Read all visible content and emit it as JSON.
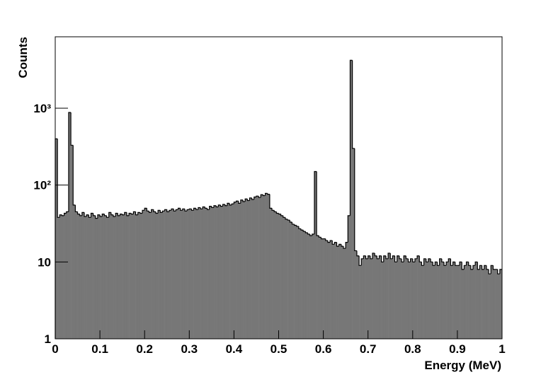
{
  "chart_data": {
    "type": "histogram",
    "xlabel": "Energy (MeV)",
    "ylabel": "Counts",
    "log_y": true,
    "color": "#777777",
    "edge_color": "#000000",
    "xlim": [
      0,
      1
    ],
    "ylim": [
      1,
      8500
    ],
    "xticks": [
      0,
      0.1,
      0.2,
      0.3,
      0.4,
      0.5,
      0.6,
      0.7,
      0.8,
      0.9,
      1
    ],
    "yticks": [
      1,
      10,
      {
        "value": 100,
        "label": "10²"
      },
      {
        "value": 1000,
        "label": "10³"
      }
    ],
    "bins": [
      0,
      0.005,
      0.01,
      0.015,
      0.02,
      0.025,
      0.03,
      0.035,
      0.04,
      0.045,
      0.05,
      0.055,
      0.06,
      0.065,
      0.07,
      0.075,
      0.08,
      0.085,
      0.09,
      0.095,
      0.1,
      0.105,
      0.11,
      0.115,
      0.12,
      0.125,
      0.13,
      0.135,
      0.14,
      0.145,
      0.15,
      0.155,
      0.16,
      0.165,
      0.17,
      0.175,
      0.18,
      0.185,
      0.19,
      0.195,
      0.2,
      0.205,
      0.21,
      0.215,
      0.22,
      0.225,
      0.23,
      0.235,
      0.24,
      0.245,
      0.25,
      0.255,
      0.26,
      0.265,
      0.27,
      0.275,
      0.28,
      0.285,
      0.29,
      0.295,
      0.3,
      0.305,
      0.31,
      0.315,
      0.32,
      0.325,
      0.33,
      0.335,
      0.34,
      0.345,
      0.35,
      0.355,
      0.36,
      0.365,
      0.37,
      0.375,
      0.38,
      0.385,
      0.39,
      0.395,
      0.4,
      0.405,
      0.41,
      0.415,
      0.42,
      0.425,
      0.43,
      0.435,
      0.44,
      0.445,
      0.45,
      0.455,
      0.46,
      0.465,
      0.47,
      0.475,
      0.48,
      0.485,
      0.49,
      0.495,
      0.5,
      0.505,
      0.51,
      0.515,
      0.52,
      0.525,
      0.53,
      0.535,
      0.54,
      0.545,
      0.55,
      0.555,
      0.56,
      0.565,
      0.57,
      0.575,
      0.58,
      0.585,
      0.59,
      0.595,
      0.6,
      0.605,
      0.61,
      0.615,
      0.62,
      0.625,
      0.63,
      0.635,
      0.64,
      0.645,
      0.65,
      0.655,
      0.66,
      0.665,
      0.67,
      0.675,
      0.68,
      0.685,
      0.69,
      0.695,
      0.7,
      0.705,
      0.71,
      0.715,
      0.72,
      0.725,
      0.73,
      0.735,
      0.74,
      0.745,
      0.75,
      0.755,
      0.76,
      0.765,
      0.77,
      0.775,
      0.78,
      0.785,
      0.79,
      0.795,
      0.8,
      0.805,
      0.81,
      0.815,
      0.82,
      0.825,
      0.83,
      0.835,
      0.84,
      0.845,
      0.85,
      0.855,
      0.86,
      0.865,
      0.87,
      0.875,
      0.88,
      0.885,
      0.89,
      0.895,
      0.9,
      0.905,
      0.91,
      0.915,
      0.92,
      0.925,
      0.93,
      0.935,
      0.94,
      0.945,
      0.95,
      0.955,
      0.96,
      0.965,
      0.97,
      0.975,
      0.98,
      0.985,
      0.99,
      0.995,
      1
    ],
    "values": [
      400,
      38,
      41,
      40,
      43,
      45,
      880,
      330,
      55,
      45,
      42,
      40,
      44,
      39,
      41,
      38,
      43,
      40,
      37,
      41,
      39,
      42,
      40,
      38,
      44,
      41,
      39,
      43,
      40,
      42,
      41,
      44,
      40,
      43,
      42,
      45,
      41,
      44,
      43,
      47,
      50,
      46,
      44,
      48,
      45,
      43,
      47,
      44,
      46,
      48,
      45,
      47,
      49,
      46,
      48,
      50,
      47,
      49,
      46,
      48,
      49,
      47,
      50,
      48,
      51,
      49,
      52,
      50,
      48,
      53,
      51,
      54,
      52,
      55,
      53,
      56,
      54,
      58,
      55,
      57,
      60,
      62,
      58,
      64,
      61,
      66,
      63,
      68,
      65,
      70,
      72,
      69,
      75,
      73,
      78,
      76,
      50,
      47,
      45,
      43,
      42,
      40,
      38,
      36,
      35,
      33,
      31,
      30,
      29,
      27,
      26,
      25,
      24,
      23,
      22,
      23,
      150,
      22,
      21,
      20,
      20,
      19,
      18,
      19,
      17,
      18,
      16,
      17,
      16,
      15,
      18,
      40,
      4200,
      300,
      14,
      12,
      9,
      11,
      12,
      11,
      12,
      11,
      13,
      12,
      11,
      12,
      10,
      12,
      11,
      13,
      11,
      12,
      10,
      12,
      11,
      10,
      12,
      11,
      10,
      11,
      10,
      11,
      12,
      10,
      9,
      11,
      10,
      11,
      10,
      9,
      10,
      9,
      11,
      10,
      9,
      10,
      11,
      9,
      10,
      9,
      9,
      10,
      8,
      9,
      10,
      9,
      8,
      9,
      10,
      8,
      9,
      8,
      9,
      8,
      7,
      9,
      8,
      8,
      7,
      8
    ]
  }
}
